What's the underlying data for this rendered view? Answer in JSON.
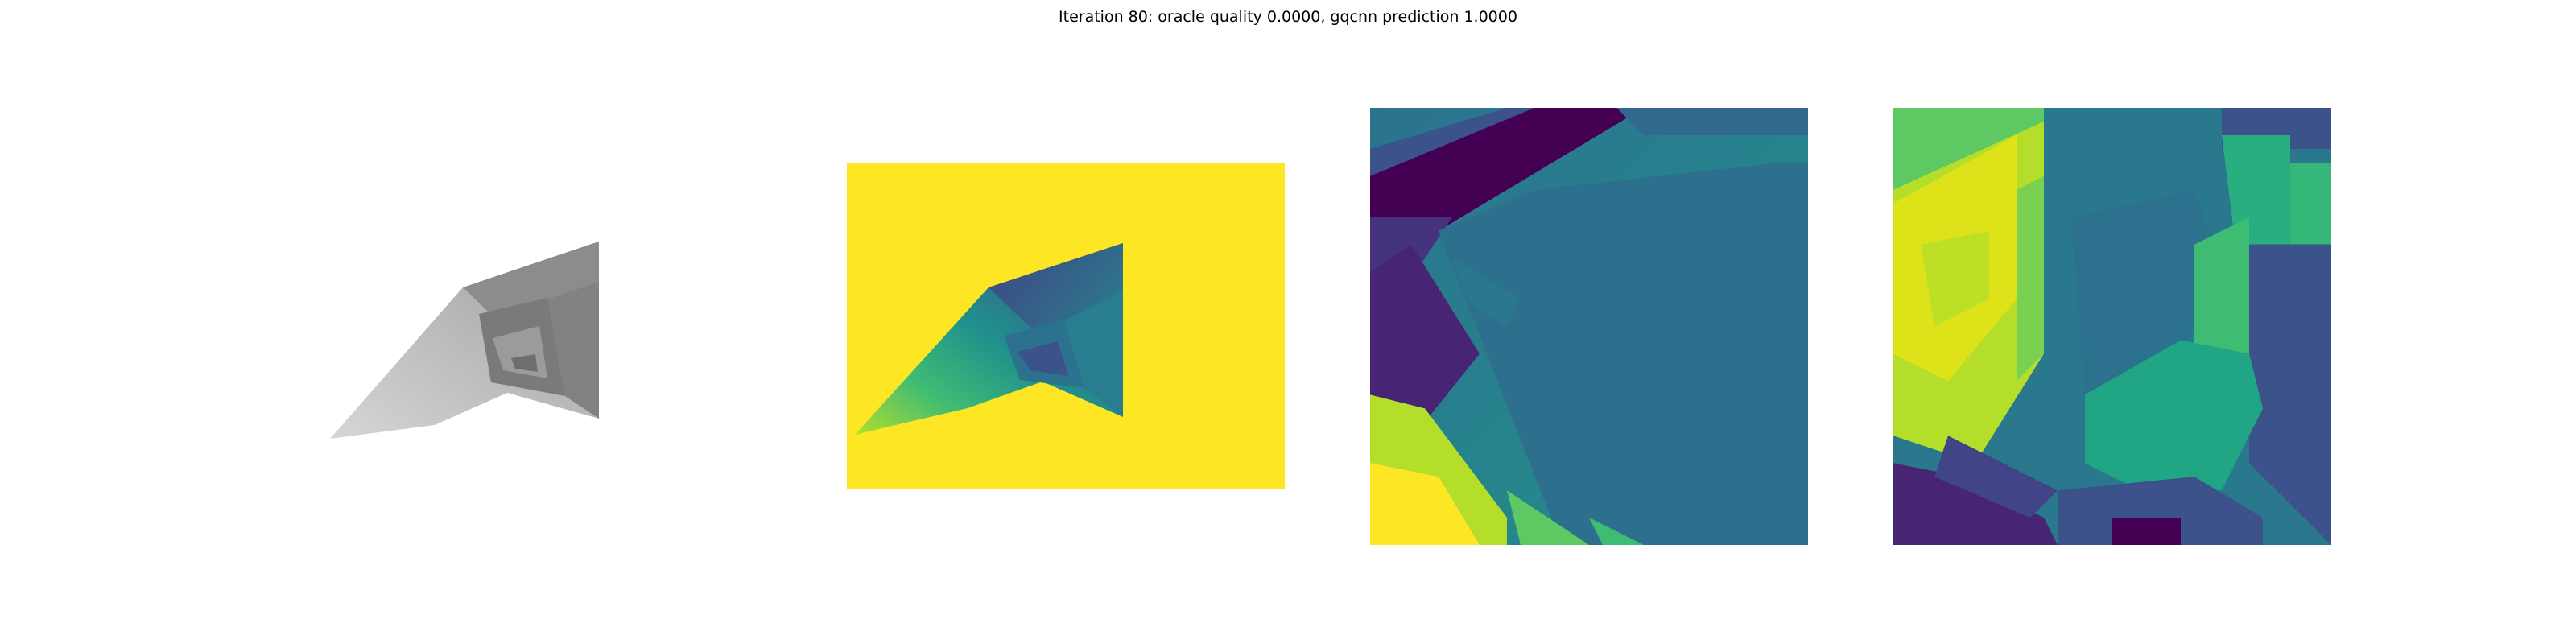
{
  "title": "Iteration 80: oracle quality 0.0000, gqcnn prediction 1.0000",
  "colors": {
    "viridis_dark": "#440154",
    "viridis_blue": "#31688e",
    "viridis_teal": "#21918c",
    "viridis_green": "#5ec962",
    "viridis_yellow": "#fde725"
  }
}
